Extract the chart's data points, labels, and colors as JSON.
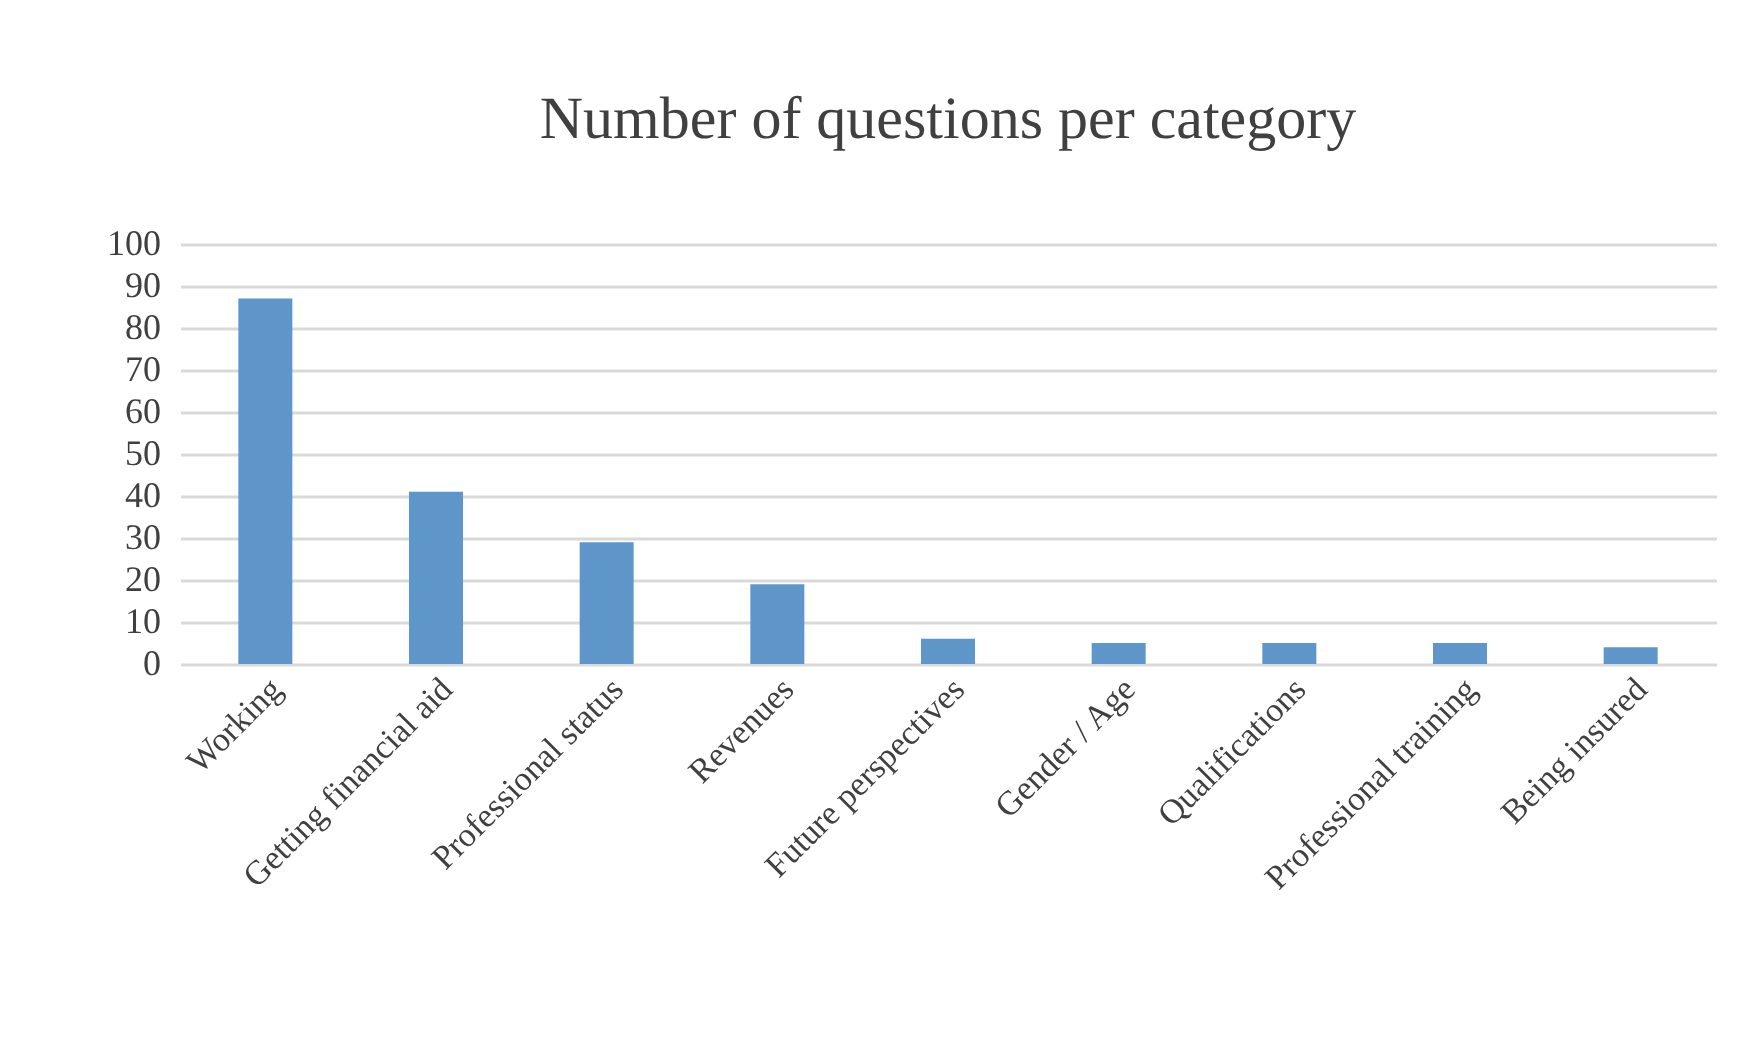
{
  "chart_data": {
    "type": "bar",
    "title": "Number of questions per category",
    "categories": [
      "Working",
      "Getting financial aid",
      "Professional status",
      "Revenues",
      "Future perspectives",
      "Gender / Age",
      "Qualifications",
      "Professional training",
      "Being insured"
    ],
    "values": [
      87,
      41,
      29,
      19,
      6,
      5,
      5,
      5,
      4
    ],
    "color": "#5f96c9",
    "ylim": [
      0,
      100
    ],
    "yticks": [
      0,
      10,
      20,
      30,
      40,
      50,
      60,
      70,
      80,
      90,
      100
    ],
    "grid": "y"
  }
}
